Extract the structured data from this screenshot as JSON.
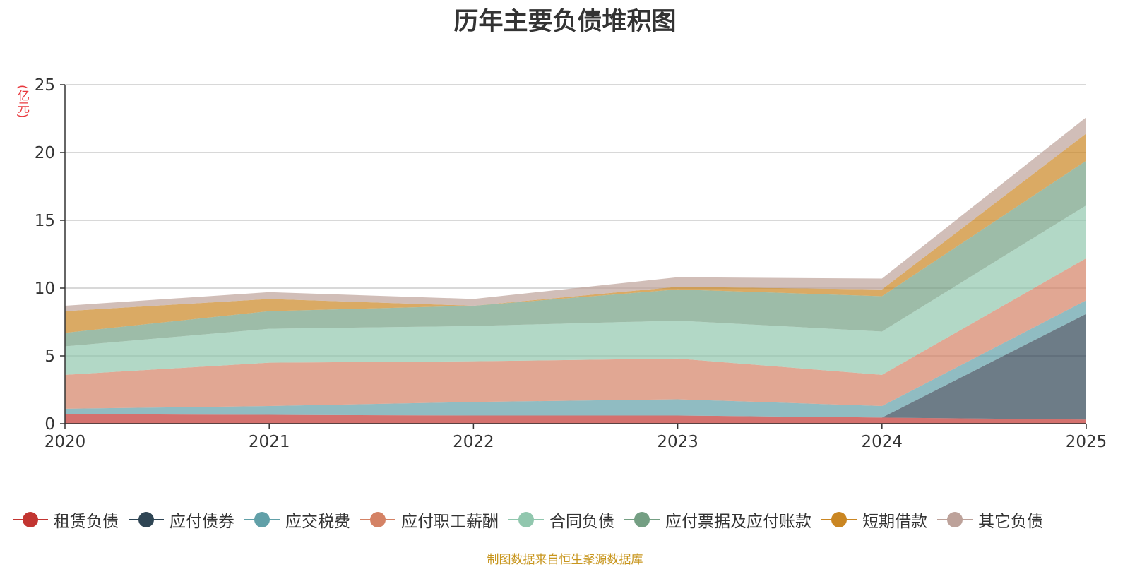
{
  "chart_data": {
    "type": "area",
    "stacked": true,
    "title": "历年主要负债堆积图",
    "ylabel": "(亿元)",
    "xlabel": "",
    "ylim": [
      0,
      25
    ],
    "yticks": [
      0,
      5,
      10,
      15,
      20,
      25
    ],
    "grid": true,
    "legend_position": "bottom",
    "categories": [
      "2020",
      "2021",
      "2022",
      "2023",
      "2024",
      "2025"
    ],
    "series": [
      {
        "name": "租赁负债",
        "color": "#c23531",
        "values": [
          0.7,
          0.65,
          0.6,
          0.6,
          0.45,
          0.3
        ]
      },
      {
        "name": "应付债券",
        "color": "#2f4554",
        "values": [
          0,
          0,
          0,
          0,
          0,
          7.8
        ]
      },
      {
        "name": "应交税费",
        "color": "#61a0a8",
        "values": [
          0.4,
          0.65,
          1.0,
          1.2,
          0.85,
          1.0
        ]
      },
      {
        "name": "应付职工薪酬",
        "color": "#d48265",
        "values": [
          2.5,
          3.2,
          3.0,
          3.0,
          2.3,
          3.1
        ]
      },
      {
        "name": "合同负债",
        "color": "#91c7ae",
        "values": [
          2.1,
          2.5,
          2.6,
          2.8,
          3.2,
          3.9
        ]
      },
      {
        "name": "应付票据及应付账款",
        "color": "#749f83",
        "values": [
          1.0,
          1.3,
          1.5,
          2.3,
          2.6,
          3.3
        ]
      },
      {
        "name": "短期借款",
        "color": "#ca8622",
        "values": [
          1.6,
          0.9,
          0.0,
          0.2,
          0.5,
          2.0
        ]
      },
      {
        "name": "其它负债",
        "color": "#bda29a",
        "values": [
          0.4,
          0.5,
          0.5,
          0.7,
          0.8,
          1.2
        ]
      }
    ]
  },
  "footer": {
    "source": "制图数据来自恒生聚源数据库"
  }
}
